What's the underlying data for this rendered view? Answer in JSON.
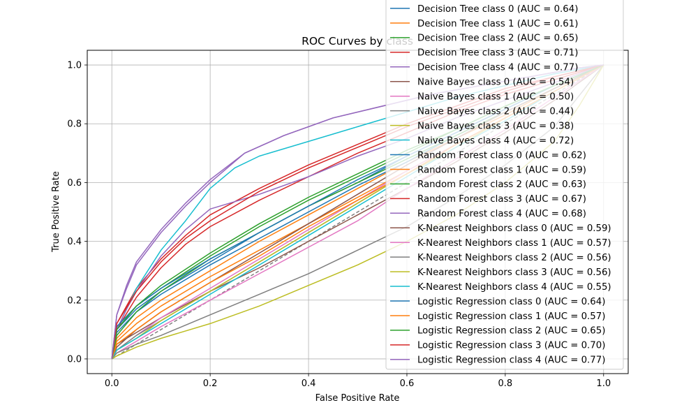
{
  "chart_data": {
    "type": "line",
    "title": "ROC Curves by class",
    "xlabel": "False Positive Rate",
    "ylabel": "True Positive Rate",
    "xlim": [
      -0.05,
      1.05
    ],
    "ylim": [
      -0.05,
      1.05
    ],
    "xticks": [
      "0.0",
      "0.2",
      "0.4",
      "0.6",
      "0.8",
      "1.0"
    ],
    "yticks": [
      "0.0",
      "0.2",
      "0.4",
      "0.6",
      "0.8",
      "1.0"
    ],
    "grid": true,
    "legend_position": "upper-right",
    "baseline": {
      "style": "dashed",
      "color": "#808080",
      "x": [
        0,
        1
      ],
      "y": [
        0,
        1
      ]
    },
    "series": [
      {
        "name": "Decision Tree class 0 (AUC = 0.64)",
        "color": "#1f77b4",
        "x": [
          0,
          0.01,
          0.05,
          0.1,
          0.2,
          0.3,
          0.4,
          0.5,
          0.6,
          0.7,
          0.8,
          0.9,
          1.0
        ],
        "y": [
          0,
          0.1,
          0.17,
          0.23,
          0.33,
          0.43,
          0.52,
          0.6,
          0.69,
          0.77,
          0.85,
          0.93,
          1.0
        ]
      },
      {
        "name": "Decision Tree class 1 (AUC = 0.61)",
        "color": "#ff7f0e",
        "x": [
          0,
          0.01,
          0.05,
          0.1,
          0.2,
          0.3,
          0.4,
          0.5,
          0.6,
          0.7,
          0.8,
          0.9,
          1.0
        ],
        "y": [
          0,
          0.07,
          0.14,
          0.2,
          0.3,
          0.4,
          0.49,
          0.58,
          0.67,
          0.75,
          0.83,
          0.92,
          1.0
        ]
      },
      {
        "name": "Decision Tree class 2 (AUC = 0.65)",
        "color": "#2ca02c",
        "x": [
          0,
          0.01,
          0.05,
          0.1,
          0.2,
          0.3,
          0.4,
          0.5,
          0.6,
          0.7,
          0.8,
          0.9,
          1.0
        ],
        "y": [
          0,
          0.1,
          0.18,
          0.24,
          0.35,
          0.45,
          0.54,
          0.62,
          0.7,
          0.78,
          0.86,
          0.93,
          1.0
        ]
      },
      {
        "name": "Decision Tree class 3 (AUC = 0.71)",
        "color": "#d62728",
        "x": [
          0,
          0.01,
          0.05,
          0.1,
          0.15,
          0.2,
          0.3,
          0.4,
          0.5,
          0.6,
          0.7,
          0.8,
          0.9,
          1.0
        ],
        "y": [
          0,
          0.12,
          0.24,
          0.34,
          0.42,
          0.49,
          0.58,
          0.66,
          0.73,
          0.8,
          0.86,
          0.92,
          0.96,
          1.0
        ]
      },
      {
        "name": "Decision Tree class 4 (AUC = 0.77)",
        "color": "#9467bd",
        "x": [
          0,
          0.01,
          0.03,
          0.05,
          0.1,
          0.15,
          0.2,
          0.27,
          0.35,
          0.45,
          0.55,
          0.65,
          0.75,
          0.85,
          0.95,
          1.0
        ],
        "y": [
          0,
          0.15,
          0.24,
          0.32,
          0.43,
          0.52,
          0.6,
          0.7,
          0.76,
          0.82,
          0.86,
          0.9,
          0.93,
          0.96,
          0.99,
          1.0
        ]
      },
      {
        "name": "Naive Bayes class 0 (AUC = 0.54)",
        "color": "#8c564b",
        "x": [
          0,
          0.01,
          0.05,
          0.1,
          0.2,
          0.3,
          0.4,
          0.5,
          0.6,
          0.7,
          0.8,
          0.9,
          1.0
        ],
        "y": [
          0,
          0.05,
          0.09,
          0.14,
          0.23,
          0.31,
          0.4,
          0.49,
          0.58,
          0.67,
          0.77,
          0.88,
          1.0
        ]
      },
      {
        "name": "Naive Bayes class 1 (AUC = 0.50)",
        "color": "#e377c2",
        "x": [
          0,
          0.01,
          0.05,
          0.1,
          0.2,
          0.3,
          0.4,
          0.5,
          0.6,
          0.7,
          0.8,
          0.9,
          1.0
        ],
        "y": [
          0,
          0.02,
          0.06,
          0.11,
          0.2,
          0.29,
          0.38,
          0.47,
          0.58,
          0.68,
          0.78,
          0.89,
          1.0
        ]
      },
      {
        "name": "Naive Bayes class 2 (AUC = 0.44)",
        "color": "#7f7f7f",
        "x": [
          0,
          0.01,
          0.05,
          0.1,
          0.2,
          0.3,
          0.4,
          0.5,
          0.6,
          0.7,
          0.8,
          0.9,
          1.0
        ],
        "y": [
          0,
          0.02,
          0.05,
          0.08,
          0.15,
          0.22,
          0.29,
          0.37,
          0.45,
          0.55,
          0.66,
          0.79,
          1.0
        ]
      },
      {
        "name": "Naive Bayes class 3 (AUC = 0.38)",
        "color": "#bcbd22",
        "x": [
          0,
          0.01,
          0.05,
          0.1,
          0.2,
          0.3,
          0.4,
          0.5,
          0.6,
          0.7,
          0.8,
          0.9,
          0.95,
          1.0
        ],
        "y": [
          0,
          0.01,
          0.04,
          0.07,
          0.12,
          0.18,
          0.25,
          0.32,
          0.4,
          0.49,
          0.6,
          0.74,
          0.86,
          1.0
        ]
      },
      {
        "name": "Naive Bayes class 4 (AUC = 0.72)",
        "color": "#17becf",
        "x": [
          0,
          0.01,
          0.03,
          0.05,
          0.1,
          0.15,
          0.2,
          0.25,
          0.3,
          0.4,
          0.5,
          0.6,
          0.7,
          0.8,
          0.9,
          1.0
        ],
        "y": [
          0,
          0.1,
          0.17,
          0.24,
          0.37,
          0.47,
          0.58,
          0.65,
          0.69,
          0.74,
          0.79,
          0.84,
          0.89,
          0.93,
          0.97,
          1.0
        ]
      },
      {
        "name": "Random Forest class 0 (AUC = 0.62)",
        "color": "#1f77b4",
        "x": [
          0,
          0.01,
          0.05,
          0.1,
          0.2,
          0.3,
          0.4,
          0.5,
          0.6,
          0.7,
          0.8,
          0.9,
          1.0
        ],
        "y": [
          0,
          0.09,
          0.16,
          0.22,
          0.32,
          0.41,
          0.5,
          0.59,
          0.67,
          0.76,
          0.84,
          0.92,
          1.0
        ]
      },
      {
        "name": "Random Forest class 1 (AUC = 0.59)",
        "color": "#ff7f0e",
        "x": [
          0,
          0.01,
          0.05,
          0.1,
          0.2,
          0.3,
          0.4,
          0.5,
          0.6,
          0.7,
          0.8,
          0.9,
          1.0
        ],
        "y": [
          0,
          0.06,
          0.12,
          0.18,
          0.28,
          0.37,
          0.46,
          0.55,
          0.64,
          0.73,
          0.82,
          0.91,
          1.0
        ]
      },
      {
        "name": "Random Forest class 2 (AUC = 0.63)",
        "color": "#2ca02c",
        "x": [
          0,
          0.01,
          0.05,
          0.1,
          0.2,
          0.3,
          0.4,
          0.5,
          0.6,
          0.7,
          0.8,
          0.9,
          1.0
        ],
        "y": [
          0,
          0.08,
          0.16,
          0.23,
          0.34,
          0.43,
          0.52,
          0.6,
          0.68,
          0.76,
          0.84,
          0.92,
          1.0
        ]
      },
      {
        "name": "Random Forest class 3 (AUC = 0.67)",
        "color": "#d62728",
        "x": [
          0,
          0.01,
          0.05,
          0.1,
          0.15,
          0.2,
          0.3,
          0.4,
          0.5,
          0.6,
          0.7,
          0.8,
          0.9,
          1.0
        ],
        "y": [
          0,
          0.1,
          0.21,
          0.31,
          0.39,
          0.45,
          0.54,
          0.62,
          0.7,
          0.77,
          0.84,
          0.9,
          0.95,
          1.0
        ]
      },
      {
        "name": "Random Forest class 4 (AUC = 0.68)",
        "color": "#9467bd",
        "x": [
          0,
          0.01,
          0.03,
          0.05,
          0.1,
          0.15,
          0.2,
          0.3,
          0.4,
          0.5,
          0.6,
          0.7,
          0.8,
          0.9,
          1.0
        ],
        "y": [
          0,
          0.1,
          0.17,
          0.23,
          0.35,
          0.44,
          0.51,
          0.56,
          0.62,
          0.69,
          0.75,
          0.82,
          0.88,
          0.94,
          1.0
        ]
      },
      {
        "name": "K-Nearest Neighbors class 0 (AUC = 0.59)",
        "color": "#8c564b",
        "x": [
          0,
          0.01,
          0.05,
          0.1,
          0.2,
          0.3,
          0.4,
          0.5,
          0.6,
          0.7,
          0.8,
          0.9,
          1.0
        ],
        "y": [
          0,
          0.04,
          0.1,
          0.16,
          0.26,
          0.36,
          0.46,
          0.56,
          0.66,
          0.75,
          0.84,
          0.92,
          1.0
        ]
      },
      {
        "name": "K-Nearest Neighbors class 1 (AUC = 0.57)",
        "color": "#e377c2",
        "x": [
          0,
          0.01,
          0.05,
          0.1,
          0.2,
          0.3,
          0.4,
          0.5,
          0.6,
          0.7,
          0.8,
          0.9,
          1.0
        ],
        "y": [
          0,
          0.03,
          0.08,
          0.14,
          0.24,
          0.34,
          0.44,
          0.54,
          0.64,
          0.73,
          0.82,
          0.91,
          1.0
        ]
      },
      {
        "name": "K-Nearest Neighbors class 2 (AUC = 0.56)",
        "color": "#7f7f7f",
        "x": [
          0,
          0.01,
          0.05,
          0.1,
          0.2,
          0.3,
          0.4,
          0.5,
          0.6,
          0.7,
          0.8,
          0.9,
          1.0
        ],
        "y": [
          0,
          0.03,
          0.08,
          0.13,
          0.23,
          0.33,
          0.43,
          0.53,
          0.63,
          0.72,
          0.82,
          0.91,
          1.0
        ]
      },
      {
        "name": "K-Nearest Neighbors class 3 (AUC = 0.56)",
        "color": "#bcbd22",
        "x": [
          0,
          0.01,
          0.05,
          0.1,
          0.2,
          0.3,
          0.4,
          0.5,
          0.6,
          0.7,
          0.8,
          0.9,
          1.0
        ],
        "y": [
          0,
          0.03,
          0.07,
          0.13,
          0.23,
          0.33,
          0.43,
          0.53,
          0.63,
          0.72,
          0.82,
          0.91,
          1.0
        ]
      },
      {
        "name": "K-Nearest Neighbors class 4 (AUC = 0.55)",
        "color": "#17becf",
        "x": [
          0,
          0.01,
          0.05,
          0.1,
          0.2,
          0.3,
          0.4,
          0.5,
          0.6,
          0.7,
          0.8,
          0.9,
          1.0
        ],
        "y": [
          0,
          0.03,
          0.07,
          0.12,
          0.22,
          0.32,
          0.42,
          0.52,
          0.62,
          0.72,
          0.81,
          0.91,
          1.0
        ]
      },
      {
        "name": "Logistic Regression class 0 (AUC = 0.64)",
        "color": "#1f77b4",
        "x": [
          0,
          0.01,
          0.05,
          0.1,
          0.2,
          0.3,
          0.4,
          0.5,
          0.6,
          0.7,
          0.8,
          0.9,
          1.0
        ],
        "y": [
          0,
          0.11,
          0.18,
          0.24,
          0.34,
          0.43,
          0.52,
          0.61,
          0.69,
          0.77,
          0.85,
          0.93,
          1.0
        ]
      },
      {
        "name": "Logistic Regression class 1 (AUC = 0.57)",
        "color": "#ff7f0e",
        "x": [
          0,
          0.01,
          0.05,
          0.1,
          0.2,
          0.3,
          0.4,
          0.5,
          0.6,
          0.7,
          0.8,
          0.9,
          1.0
        ],
        "y": [
          0,
          0.05,
          0.1,
          0.16,
          0.26,
          0.35,
          0.45,
          0.54,
          0.63,
          0.73,
          0.82,
          0.91,
          1.0
        ]
      },
      {
        "name": "Logistic Regression class 2 (AUC = 0.65)",
        "color": "#2ca02c",
        "x": [
          0,
          0.01,
          0.05,
          0.1,
          0.2,
          0.3,
          0.4,
          0.5,
          0.6,
          0.7,
          0.8,
          0.9,
          1.0
        ],
        "y": [
          0,
          0.1,
          0.18,
          0.25,
          0.36,
          0.46,
          0.55,
          0.63,
          0.71,
          0.78,
          0.86,
          0.93,
          1.0
        ]
      },
      {
        "name": "Logistic Regression class 3 (AUC = 0.70)",
        "color": "#d62728",
        "x": [
          0,
          0.01,
          0.05,
          0.1,
          0.15,
          0.2,
          0.3,
          0.4,
          0.5,
          0.6,
          0.7,
          0.8,
          0.9,
          1.0
        ],
        "y": [
          0,
          0.12,
          0.23,
          0.33,
          0.41,
          0.47,
          0.57,
          0.65,
          0.72,
          0.79,
          0.85,
          0.91,
          0.96,
          1.0
        ]
      },
      {
        "name": "Logistic Regression class 4 (AUC = 0.77)",
        "color": "#9467bd",
        "x": [
          0,
          0.01,
          0.03,
          0.05,
          0.1,
          0.15,
          0.2,
          0.27,
          0.35,
          0.45,
          0.55,
          0.65,
          0.75,
          0.85,
          0.95,
          1.0
        ],
        "y": [
          0,
          0.15,
          0.25,
          0.33,
          0.44,
          0.53,
          0.61,
          0.7,
          0.76,
          0.82,
          0.86,
          0.9,
          0.93,
          0.96,
          0.99,
          1.0
        ]
      }
    ]
  }
}
